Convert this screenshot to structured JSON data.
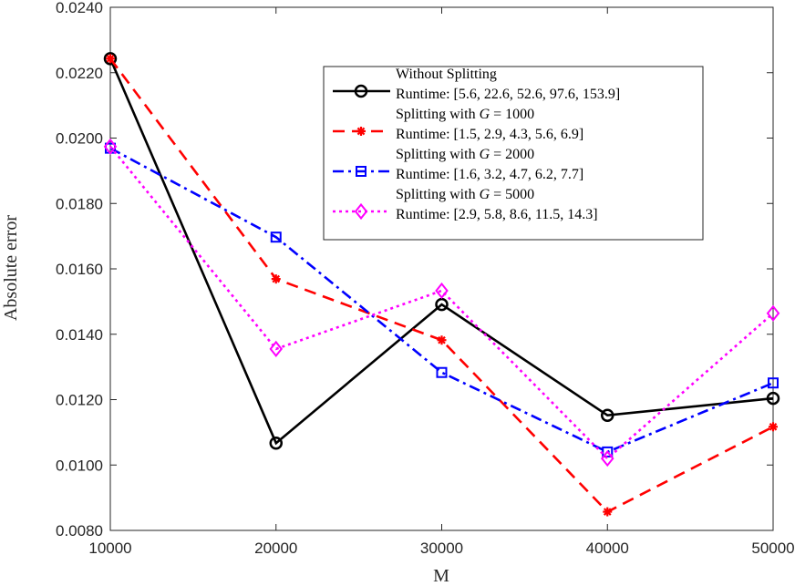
{
  "chart_data": {
    "type": "line",
    "xlabel": "M",
    "ylabel": "Absolute error",
    "xlim": [
      10000,
      50000
    ],
    "ylim": [
      0.008,
      0.024
    ],
    "x": [
      10000,
      20000,
      30000,
      40000,
      50000
    ],
    "x_ticks": [
      "10000",
      "20000",
      "30000",
      "40000",
      "50000"
    ],
    "y_tick_values": [
      0.008,
      0.01,
      0.012,
      0.014,
      0.016,
      0.018,
      0.02,
      0.022,
      0.024
    ],
    "y_ticks": [
      "0.0080",
      "0.0100",
      "0.0120",
      "0.0140",
      "0.0160",
      "0.0180",
      "0.0200",
      "0.0220",
      "0.0240"
    ],
    "legend_position": "top-right",
    "series": [
      {
        "key": "without",
        "name": "Without Splitting",
        "runtime": "Runtime: [5.6,  22.6,  52.6,  97.6,  153.9]",
        "values": [
          0.02243,
          0.01067,
          0.01491,
          0.01152,
          0.01204
        ],
        "color": "#000000",
        "dash": "",
        "marker": "circle"
      },
      {
        "key": "g1000",
        "name": "Splitting with G = 1000",
        "name_prefix": "Splitting with ",
        "name_var": "G",
        "name_suffix": " = 1000",
        "runtime": "Runtime: [1.5,  2.9,  4.3,  5.6,  6.9]",
        "values": [
          0.02243,
          0.01569,
          0.01382,
          0.00857,
          0.01117
        ],
        "color": "#ff0000",
        "dash": "13,8",
        "marker": "asterisk"
      },
      {
        "key": "g2000",
        "name": "Splitting with G = 2000",
        "name_prefix": "Splitting with ",
        "name_var": "G",
        "name_suffix": " = 2000",
        "runtime": "Runtime: [1.6,  3.2,  4.7,  6.2,  7.7]",
        "values": [
          0.01969,
          0.01697,
          0.01283,
          0.0104,
          0.01251
        ],
        "color": "#0000ff",
        "dash": "12,5,3,5",
        "marker": "square"
      },
      {
        "key": "g5000",
        "name": "Splitting with G = 5000",
        "name_prefix": "Splitting with ",
        "name_var": "G",
        "name_suffix": " = 5000",
        "runtime": "Runtime: [2.9,  5.8,  8.6,  11.5,  14.3]",
        "values": [
          0.01974,
          0.01355,
          0.01533,
          0.0102,
          0.01464
        ],
        "color": "#ff00ff",
        "dash": "3,4",
        "marker": "diamond"
      }
    ]
  }
}
